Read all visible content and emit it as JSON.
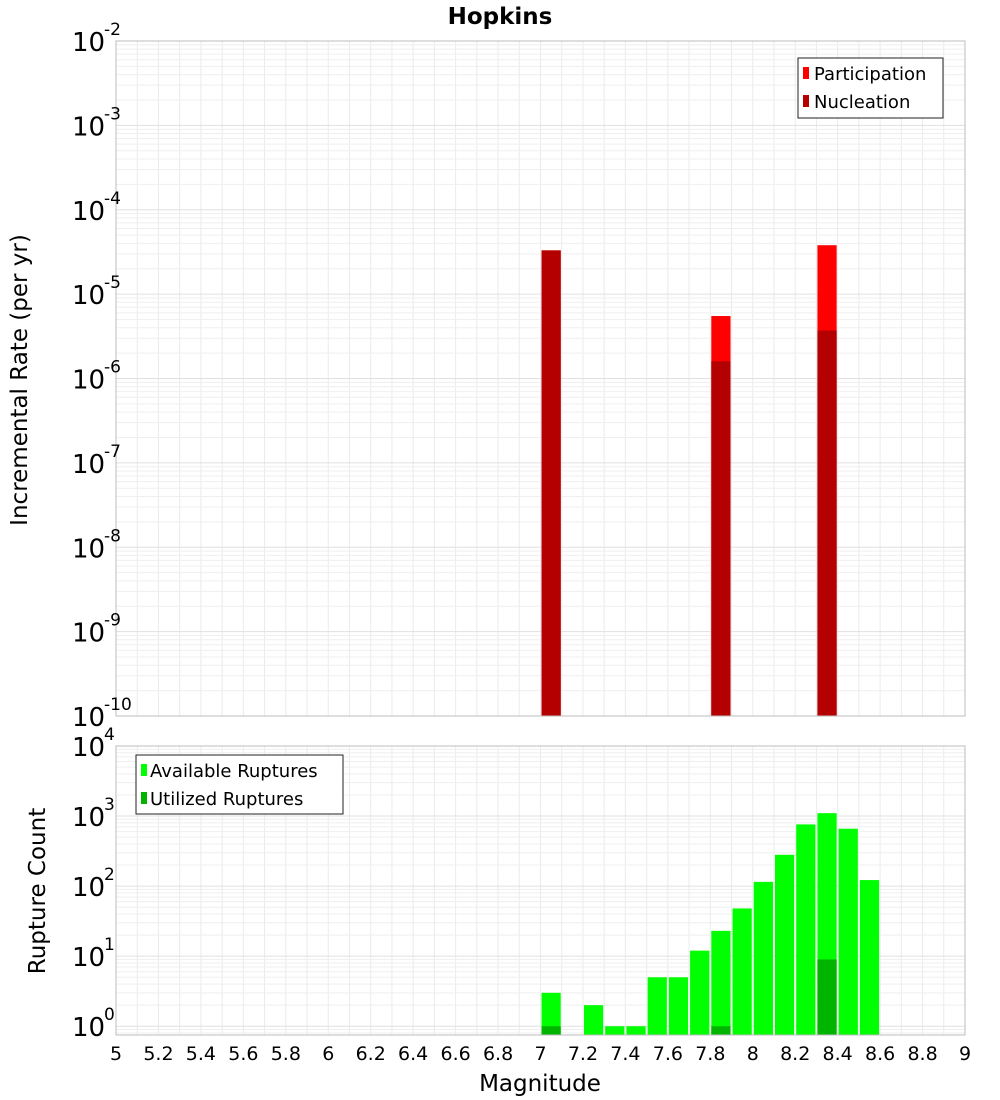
{
  "chart_data": [
    {
      "type": "bar",
      "title": "Hopkins",
      "xlabel": "",
      "ylabel": "Incremental Rate (per yr)",
      "yscale": "log",
      "xlim": [
        5,
        9
      ],
      "ylim": [
        1e-10,
        0.01
      ],
      "grid": true,
      "legend_position": "top-right",
      "y_ticks": [
        {
          "base": "10",
          "exp": "-10"
        },
        {
          "base": "10",
          "exp": "-9"
        },
        {
          "base": "10",
          "exp": "-8"
        },
        {
          "base": "10",
          "exp": "-7"
        },
        {
          "base": "10",
          "exp": "-6"
        },
        {
          "base": "10",
          "exp": "-5"
        },
        {
          "base": "10",
          "exp": "-4"
        },
        {
          "base": "10",
          "exp": "-3"
        },
        {
          "base": "10",
          "exp": "-2"
        }
      ],
      "series": [
        {
          "name": "Participation",
          "color": "#ff0000",
          "points": [
            {
              "x": 7.05,
              "y": 3.3e-05
            },
            {
              "x": 7.85,
              "y": 5.5e-06
            },
            {
              "x": 8.35,
              "y": 3.8e-05
            }
          ]
        },
        {
          "name": "Nucleation",
          "color": "#b40000",
          "points": [
            {
              "x": 7.05,
              "y": 3.3e-05
            },
            {
              "x": 7.85,
              "y": 1.6e-06
            },
            {
              "x": 8.35,
              "y": 3.7e-06
            }
          ]
        }
      ]
    },
    {
      "type": "bar",
      "title": "",
      "xlabel": "Magnitude",
      "ylabel": "Rupture Count",
      "yscale": "log",
      "xlim": [
        5,
        9
      ],
      "ylim": [
        0.75,
        10000
      ],
      "grid": true,
      "legend_position": "top-left",
      "x_ticks": [
        "5",
        "5.2",
        "5.4",
        "5.6",
        "5.8",
        "6",
        "6.2",
        "6.4",
        "6.6",
        "6.8",
        "7",
        "7.2",
        "7.4",
        "7.6",
        "7.8",
        "8",
        "8.2",
        "8.4",
        "8.6",
        "8.8",
        "9"
      ],
      "y_ticks": [
        {
          "base": "10",
          "exp": "0"
        },
        {
          "base": "10",
          "exp": "1"
        },
        {
          "base": "10",
          "exp": "2"
        },
        {
          "base": "10",
          "exp": "3"
        },
        {
          "base": "10",
          "exp": "4"
        }
      ],
      "series": [
        {
          "name": "Available Ruptures",
          "color": "#00ff00",
          "points": [
            {
              "x": 7.05,
              "y": 3
            },
            {
              "x": 7.25,
              "y": 2
            },
            {
              "x": 7.35,
              "y": 1
            },
            {
              "x": 7.45,
              "y": 1
            },
            {
              "x": 7.55,
              "y": 5
            },
            {
              "x": 7.65,
              "y": 5
            },
            {
              "x": 7.75,
              "y": 12
            },
            {
              "x": 7.85,
              "y": 23
            },
            {
              "x": 7.95,
              "y": 48
            },
            {
              "x": 8.05,
              "y": 115
            },
            {
              "x": 8.15,
              "y": 280
            },
            {
              "x": 8.25,
              "y": 760
            },
            {
              "x": 8.35,
              "y": 1100
            },
            {
              "x": 8.45,
              "y": 660
            },
            {
              "x": 8.55,
              "y": 122
            }
          ]
        },
        {
          "name": "Utilized Ruptures",
          "color": "#00b400",
          "points": [
            {
              "x": 7.05,
              "y": 1
            },
            {
              "x": 7.85,
              "y": 1
            },
            {
              "x": 8.35,
              "y": 9
            }
          ]
        }
      ]
    }
  ]
}
